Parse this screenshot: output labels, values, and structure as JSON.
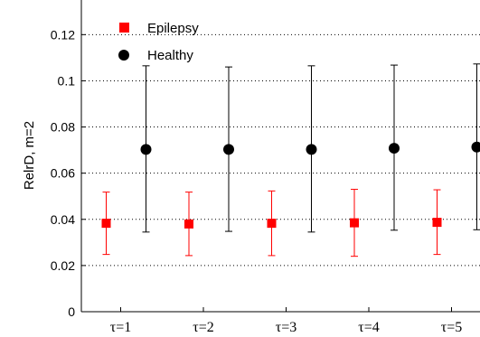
{
  "chart_data": {
    "type": "scatter",
    "title": "",
    "xlabel": "",
    "ylabel": "RelrD, m=2",
    "categories": [
      "τ=1",
      "τ=2",
      "τ=3",
      "τ=4",
      "τ=5"
    ],
    "ylim": [
      0,
      0.135
    ],
    "yticks": [
      0,
      0.02,
      0.04,
      0.06,
      0.08,
      0.1,
      0.12
    ],
    "ytick_labels": [
      "0",
      "0.02",
      "0.04",
      "0.06",
      "0.08",
      "0.1",
      "0.12"
    ],
    "grid": "horizontal dotted",
    "legend_position": "top-left",
    "series": [
      {
        "name": "Epilepsy",
        "marker": "square",
        "color": "#ff0000",
        "errorbar_color": "#ff0000",
        "values": [
          0.0383,
          0.038,
          0.0383,
          0.0385,
          0.0387
        ],
        "lower": [
          0.0248,
          0.0243,
          0.0243,
          0.024,
          0.0248
        ],
        "upper": [
          0.0518,
          0.0518,
          0.0523,
          0.053,
          0.0528
        ]
      },
      {
        "name": "Healthy",
        "marker": "circle",
        "color": "#000000",
        "errorbar_color": "#000000",
        "values": [
          0.0703,
          0.0703,
          0.0703,
          0.0708,
          0.0713
        ],
        "lower": [
          0.0345,
          0.0348,
          0.0345,
          0.0353,
          0.0355
        ],
        "upper": [
          0.1065,
          0.106,
          0.1065,
          0.1068,
          0.1073
        ]
      }
    ]
  }
}
